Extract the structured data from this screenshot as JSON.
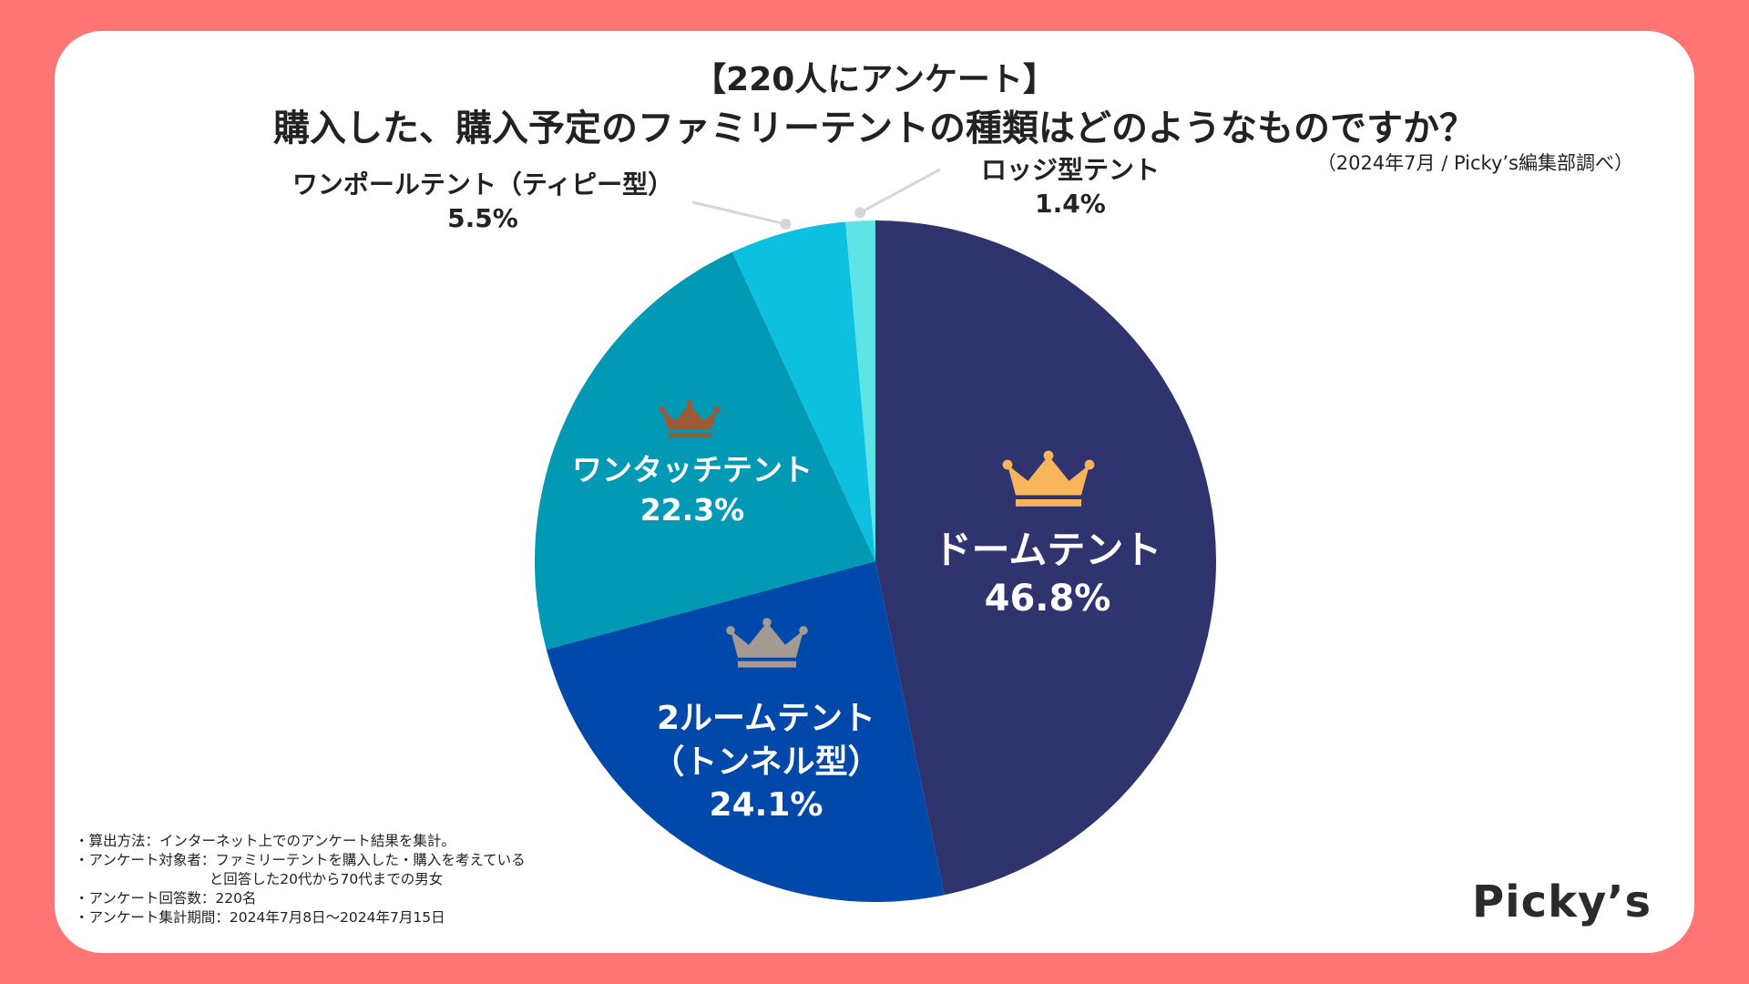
{
  "header": {
    "tag": "【220人にアンケート】",
    "title": "購入した、購入予定のファミリーテントの種類はどのようなものですか？",
    "source": "（2024年7月 / Picky’s編集部調べ）"
  },
  "chart_data": {
    "type": "pie",
    "title": "購入した、購入予定のファミリーテントの種類はどのようなものですか？",
    "unit": "%",
    "slices": [
      {
        "label": "ドームテント",
        "value": 46.8,
        "value_label": "46.8%",
        "color": "#2f336e",
        "rank": "gold"
      },
      {
        "label": "2ルームテント（トンネル型）",
        "label_lines": [
          "2ルームテント",
          "（トンネル型）"
        ],
        "value": 24.1,
        "value_label": "24.1%",
        "color": "#0048aa",
        "rank": "silver"
      },
      {
        "label": "ワンタッチテント",
        "value": 22.3,
        "value_label": "22.3%",
        "color": "#0299b4",
        "rank": "bronze"
      },
      {
        "label": "ワンポールテント（ティピー型）",
        "value": 5.5,
        "value_label": "5.5%",
        "color": "#0dc0df"
      },
      {
        "label": "ロッジ型テント",
        "value": 1.4,
        "value_label": "1.4%",
        "color": "#5ee3e6"
      }
    ]
  },
  "crown_colors": {
    "gold": "#f8b55c",
    "silver": "#a49a91",
    "bronze": "#9b5b35"
  },
  "notes": [
    "・算出方法：インターネット上でのアンケート結果を集計。",
    "・アンケート対象者：ファミリーテントを購入した・購入を考えている",
    "                              と回答した20代から70代までの男女",
    "・アンケート回答数：220名",
    "・アンケート集計期間：2024年7月8日〜2024年7月15日"
  ],
  "logo": "Picky’s"
}
